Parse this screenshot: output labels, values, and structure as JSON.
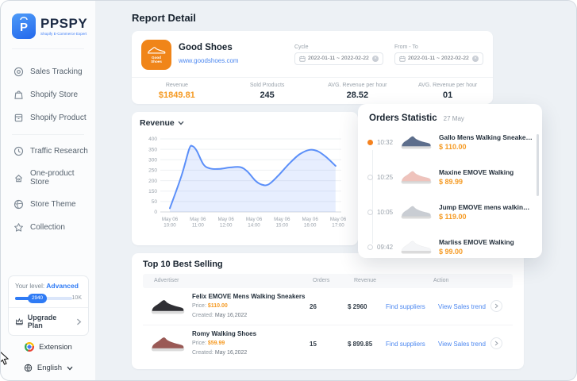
{
  "sidebar": {
    "brand": "PPSPY",
    "tagline": "Shopify E-Commerce Expert",
    "items": [
      {
        "label": "Sales Tracking",
        "icon": "target-icon"
      },
      {
        "label": "Shopify Store",
        "icon": "bag-icon"
      },
      {
        "label": "Shopify Product",
        "icon": "product-icon"
      },
      {
        "label": "Traffic Research",
        "icon": "clock-icon"
      },
      {
        "label": "One-product Store",
        "icon": "home-icon"
      },
      {
        "label": "Store Theme",
        "icon": "globe-icon"
      },
      {
        "label": "Collection",
        "icon": "star-icon"
      }
    ],
    "level_card": {
      "label": "Your level:",
      "level": "Advanced",
      "progress_value": "2940",
      "progress_max": "10K",
      "upgrade_label": "Upgrade Plan"
    },
    "extension_label": "Extension",
    "language_label": "English"
  },
  "header": {
    "title": "Report Detail"
  },
  "store_card": {
    "icon_text": "Good Shoes",
    "name": "Good Shoes",
    "url": "www.goodshoes.com",
    "cycle_label": "Cycle",
    "cycle_value": "2022-01-11 ~ 2022-02-22",
    "fromto_label": "From - To",
    "fromto_value": "2022-01-11 ~ 2022-02-22",
    "stats": [
      {
        "label": "Revenue",
        "value": "$1849.81"
      },
      {
        "label": "Sold Products",
        "value": "245"
      },
      {
        "label": "AVG. Revenue per hour",
        "value": "28.52"
      },
      {
        "label": "AVG. Revenue per hour",
        "value": "01"
      }
    ]
  },
  "chart_card": {
    "title": "Revenue"
  },
  "chart_data": {
    "type": "area",
    "title": "Revenue",
    "series_name": "Revenue",
    "x_tick_labels": [
      [
        "May 06",
        "10:00"
      ],
      [
        "May 06",
        "11:00"
      ],
      [
        "May 06",
        "12:00"
      ],
      [
        "May 06",
        "14:00"
      ],
      [
        "May 06",
        "15:00"
      ],
      [
        "May 06",
        "16:00"
      ],
      [
        "May 06",
        "17:00"
      ]
    ],
    "y_tick_labels": [
      "400",
      "350",
      "300",
      "250",
      "200",
      "150",
      "50",
      "0"
    ],
    "ylim": [
      0,
      400
    ],
    "grid": true,
    "legend": "none",
    "line_color": "#5b8ff9",
    "fill_color": "rgba(91,143,249,0.15)",
    "points_x_as_axis_fraction": [
      [
        0.0,
        20
      ],
      [
        0.07,
        200
      ],
      [
        0.115,
        345
      ],
      [
        0.135,
        360
      ],
      [
        0.16,
        335
      ],
      [
        0.2,
        260
      ],
      [
        0.24,
        238
      ],
      [
        0.3,
        236
      ],
      [
        0.36,
        244
      ],
      [
        0.42,
        245
      ],
      [
        0.46,
        222
      ],
      [
        0.51,
        170
      ],
      [
        0.545,
        150
      ],
      [
        0.585,
        150
      ],
      [
        0.64,
        195
      ],
      [
        0.71,
        265
      ],
      [
        0.77,
        315
      ],
      [
        0.83,
        340
      ],
      [
        0.88,
        332
      ],
      [
        0.93,
        300
      ],
      [
        0.985,
        252
      ]
    ]
  },
  "orders_panel": {
    "title": "Orders Statistic",
    "date": "27 May",
    "items": [
      {
        "time": "10:32",
        "name": "Gallo Mens Walking Sneakers...",
        "price": "$ 110.00",
        "shoe_color": "#5d6e8c",
        "active": true
      },
      {
        "time": "10:25",
        "name": "Maxine EMOVE Walking",
        "price": "$ 89.99",
        "shoe_color": "#efc3bc",
        "active": false
      },
      {
        "time": "10:05",
        "name": "Jump EMOVE mens walking s...",
        "price": "$ 119.00",
        "shoe_color": "#c9cdd3",
        "active": false
      },
      {
        "time": "09:42",
        "name": "Marliss EMOVE Walking",
        "price": "$ 99.00",
        "shoe_color": "#f4f5f7",
        "active": false
      }
    ]
  },
  "table_card": {
    "title": "Top 10 Best Selling",
    "columns": {
      "advertiser": "Advertiser",
      "orders": "Orders",
      "revenue": "Revenue",
      "action": "Action"
    },
    "rows": [
      {
        "name": "Felix EMOVE Mens Walking Sneakers",
        "price_label": "Price:",
        "price": "$110.00",
        "created_label": "Created:",
        "created": "May 16,2022",
        "orders": "26",
        "revenue": "$ 2960",
        "action_find": "Find suppliers",
        "action_trend": "View Sales trend",
        "shoe_color": "#2f2f34"
      },
      {
        "name": "Romy Walking Shoes",
        "price_label": "Price:",
        "price": "$59.99",
        "created_label": "Created:",
        "created": "May 16,2022",
        "orders": "15",
        "revenue": "$ 899.85",
        "action_find": "Find suppliers",
        "action_trend": "View Sales trend",
        "shoe_color": "#9a5955"
      }
    ]
  }
}
